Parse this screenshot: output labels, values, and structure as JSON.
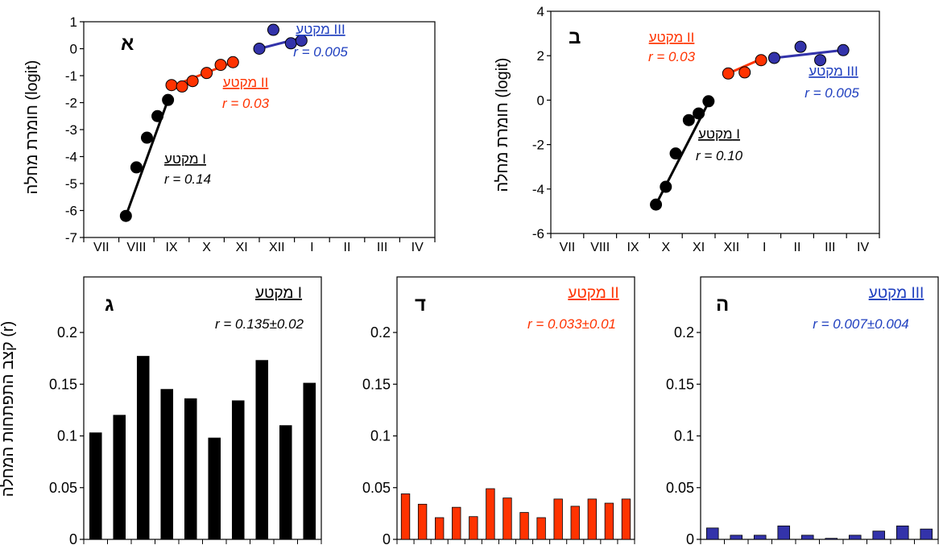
{
  "colors": {
    "seg1": "#000000",
    "seg2": "#ff3300",
    "seg3": "#3333aa",
    "blue_text": "#1f3fbf",
    "red_text": "#ff3300"
  },
  "chart_data": [
    {
      "id": "A",
      "type": "scatter",
      "panel_letter": "א",
      "ylabel": "חומרת מחלה (logit)",
      "ylim": [
        -7,
        1
      ],
      "yticks": [
        "1",
        "0",
        "-1",
        "-2",
        "-3",
        "-4",
        "-5",
        "-6",
        "-7"
      ],
      "xticks": [
        "VII",
        "VIII",
        "IX",
        "X",
        "XI",
        "XII",
        "I",
        "II",
        "III",
        "IV"
      ],
      "series": [
        {
          "name": "מקטע I",
          "r_label": "r = 0.14",
          "color": "#000000",
          "x": [
            1.2,
            1.5,
            1.8,
            2.1,
            2.4
          ],
          "y": [
            -6.2,
            -4.4,
            -3.3,
            -2.5,
            -1.9
          ],
          "fit": [
            [
              1.2,
              -6.2
            ],
            [
              2.4,
              -1.9
            ]
          ]
        },
        {
          "name": "מקטע II",
          "r_label": "r = 0.03",
          "color": "#ff3300",
          "x": [
            2.5,
            2.8,
            3.1,
            3.5,
            3.9,
            4.25
          ],
          "y": [
            -1.35,
            -1.4,
            -1.2,
            -0.9,
            -0.6,
            -0.5
          ],
          "fit": [
            [
              2.5,
              -1.4
            ],
            [
              4.25,
              -0.5
            ]
          ]
        },
        {
          "name": "מקטע III",
          "r_label": "r = 0.005",
          "color": "#3333aa",
          "x": [
            5.0,
            5.4,
            5.9,
            6.2
          ],
          "y": [
            0.0,
            0.7,
            0.2,
            0.3
          ],
          "fit": [
            [
              5.0,
              0.0
            ],
            [
              6.2,
              0.4
            ]
          ]
        }
      ]
    },
    {
      "id": "B",
      "type": "scatter",
      "panel_letter": "ב",
      "ylabel": "חומרת מחלה (logit)",
      "ylim": [
        -6,
        4
      ],
      "yticks": [
        "4",
        "2",
        "0",
        "-2",
        "-4",
        "-6"
      ],
      "xticks": [
        "VII",
        "VIII",
        "IX",
        "X",
        "XI",
        "XII",
        "I",
        "II",
        "III",
        "IV"
      ],
      "series": [
        {
          "name": "מקטע I",
          "r_label": "r = 0.10",
          "color": "#000000",
          "x": [
            3.2,
            3.5,
            3.8,
            4.2,
            4.5,
            4.8
          ],
          "y": [
            -4.7,
            -3.9,
            -2.4,
            -0.9,
            -0.6,
            -0.05
          ],
          "fit": [
            [
              3.2,
              -4.7
            ],
            [
              4.8,
              -0.1
            ]
          ]
        },
        {
          "name": "מקטע II",
          "r_label": "r = 0.03",
          "color": "#ff3300",
          "x": [
            5.4,
            5.9,
            6.4
          ],
          "y": [
            1.2,
            1.25,
            1.8
          ],
          "fit": [
            [
              5.4,
              1.2
            ],
            [
              6.4,
              1.85
            ]
          ]
        },
        {
          "name": "מקטע III",
          "r_label": "r = 0.005",
          "color": "#3333aa",
          "x": [
            6.8,
            7.6,
            8.2,
            8.9
          ],
          "y": [
            1.9,
            2.4,
            1.8,
            2.25
          ],
          "fit": [
            [
              6.8,
              1.9
            ],
            [
              8.9,
              2.25
            ]
          ]
        }
      ]
    },
    {
      "id": "C",
      "type": "bar",
      "panel_letter": "ג",
      "segment": "מקטע I",
      "r_label": "r = 0.135±0.02",
      "ylabel": "קצב התפתחות המחלה (r)",
      "ylim": [
        0,
        0.2
      ],
      "yticks": [
        "0",
        "0.05",
        "0.1",
        "0.15",
        "0.2"
      ],
      "color": "#000000",
      "values": [
        0.103,
        0.12,
        0.177,
        0.145,
        0.136,
        0.098,
        0.134,
        0.173,
        0.11,
        0.151
      ]
    },
    {
      "id": "D",
      "type": "bar",
      "panel_letter": "ד",
      "segment": "מקטע II",
      "r_label": "r = 0.033±0.01",
      "ylim": [
        0,
        0.2
      ],
      "yticks": [
        "0",
        "0.05",
        "0.1",
        "0.15",
        "0.2"
      ],
      "color": "#ff3300",
      "values": [
        0.044,
        0.034,
        0.021,
        0.031,
        0.022,
        0.049,
        0.04,
        0.026,
        0.021,
        0.039,
        0.032,
        0.039,
        0.035,
        0.039
      ]
    },
    {
      "id": "E",
      "type": "bar",
      "panel_letter": "ה",
      "segment": "מקטע III",
      "r_label": "r = 0.007±0.004",
      "ylim": [
        0,
        0.2
      ],
      "yticks": [
        "0",
        "0.05",
        "0.1",
        "0.15",
        "0.2"
      ],
      "color": "#3333aa",
      "values": [
        0.011,
        0.004,
        0.004,
        0.013,
        0.004,
        0.001,
        0.004,
        0.008,
        0.013,
        0.01
      ]
    }
  ]
}
